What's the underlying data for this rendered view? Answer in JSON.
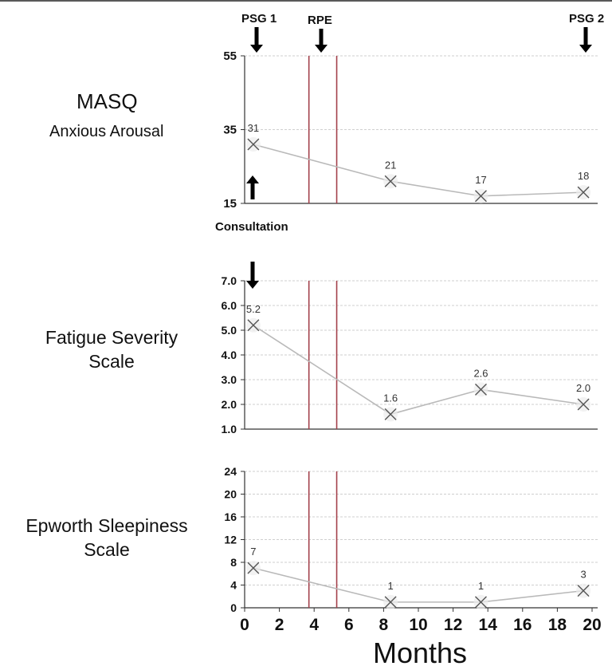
{
  "chart_data": {
    "type": "line",
    "xlabel": "Months",
    "xlim": [
      0,
      20
    ],
    "xticks": [
      "0",
      "2",
      "4",
      "6",
      "8",
      "10",
      "12",
      "14",
      "16",
      "18",
      "20"
    ],
    "vertical_lines": [
      3.7,
      5.3
    ],
    "annotations": {
      "psg1": "PSG 1",
      "rpe": "RPE",
      "psg2": "PSG 2",
      "consultation": "Consultation"
    },
    "panels": [
      {
        "title": "MASQ",
        "subtitle": "Anxious Arousal",
        "ylim": [
          15,
          55
        ],
        "yticks": [
          "15",
          "35",
          "55"
        ],
        "x": [
          0.5,
          8.4,
          13.6,
          19.5
        ],
        "values": [
          31,
          21,
          17,
          18
        ],
        "labels": [
          "31",
          "21",
          "17",
          "18"
        ]
      },
      {
        "title": "Fatigue Severity",
        "subtitle": "Scale",
        "ylim": [
          1.0,
          7.0
        ],
        "yticks": [
          "1.0",
          "2.0",
          "3.0",
          "4.0",
          "5.0",
          "6.0",
          "7.0"
        ],
        "x": [
          0.5,
          8.4,
          13.6,
          19.5
        ],
        "values": [
          5.2,
          1.6,
          2.6,
          2.0
        ],
        "labels": [
          "5.2",
          "1.6",
          "2.6",
          "2.0"
        ]
      },
      {
        "title": "Epworth Sleepiness",
        "subtitle": "Scale",
        "ylim": [
          0,
          24
        ],
        "yticks": [
          "0",
          "4",
          "8",
          "12",
          "16",
          "20",
          "24"
        ],
        "x": [
          0.5,
          8.4,
          13.6,
          19.5
        ],
        "values": [
          7,
          1,
          1,
          3
        ],
        "labels": [
          "7",
          "1",
          "1",
          "3"
        ]
      }
    ]
  }
}
